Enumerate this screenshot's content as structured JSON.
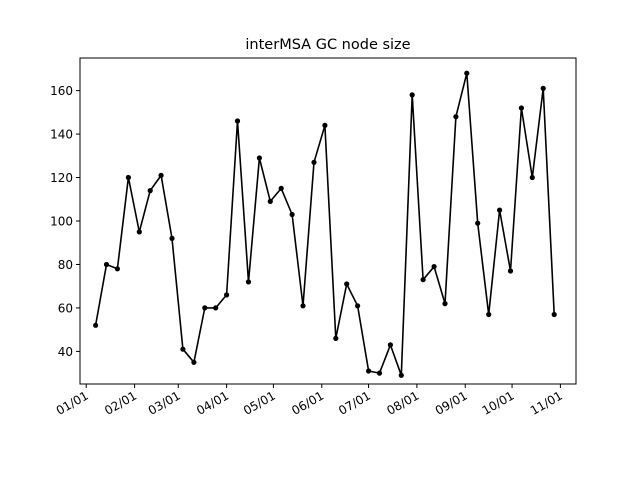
{
  "chart_data": {
    "type": "line",
    "title": "interMSA GC node size",
    "xlabel": "",
    "ylabel": "",
    "grid": false,
    "x_tick_labels": [
      "01/01",
      "02/01",
      "03/01",
      "04/01",
      "05/01",
      "06/01",
      "07/01",
      "08/01",
      "09/01",
      "10/01",
      "11/01"
    ],
    "y_ticks": [
      40,
      60,
      80,
      100,
      120,
      140,
      160
    ],
    "ylim": [
      25,
      175
    ],
    "xlim_days": [
      -4,
      314
    ],
    "series": [
      {
        "color": "#000000",
        "marker": "circle",
        "x": [
          "01/07",
          "01/14",
          "01/21",
          "01/28",
          "02/04",
          "02/11",
          "02/18",
          "02/25",
          "03/04",
          "03/11",
          "03/18",
          "03/25",
          "04/01",
          "04/08",
          "04/15",
          "04/22",
          "04/29",
          "05/06",
          "05/13",
          "05/20",
          "05/27",
          "06/03",
          "06/10",
          "06/17",
          "06/24",
          "07/01",
          "07/08",
          "07/15",
          "07/22",
          "07/29",
          "08/05",
          "08/12",
          "08/19",
          "08/26",
          "09/02",
          "09/09",
          "09/16",
          "09/23",
          "09/30",
          "10/07",
          "10/14",
          "10/21",
          "10/28"
        ],
        "y": [
          52,
          80,
          78,
          120,
          95,
          114,
          121,
          92,
          41,
          35,
          60,
          60,
          66,
          146,
          72,
          129,
          109,
          115,
          103,
          61,
          127,
          144,
          46,
          71,
          61,
          31,
          30,
          43,
          29,
          158,
          73,
          79,
          62,
          148,
          168,
          99,
          57,
          105,
          77,
          152,
          120,
          161,
          57
        ]
      }
    ]
  }
}
